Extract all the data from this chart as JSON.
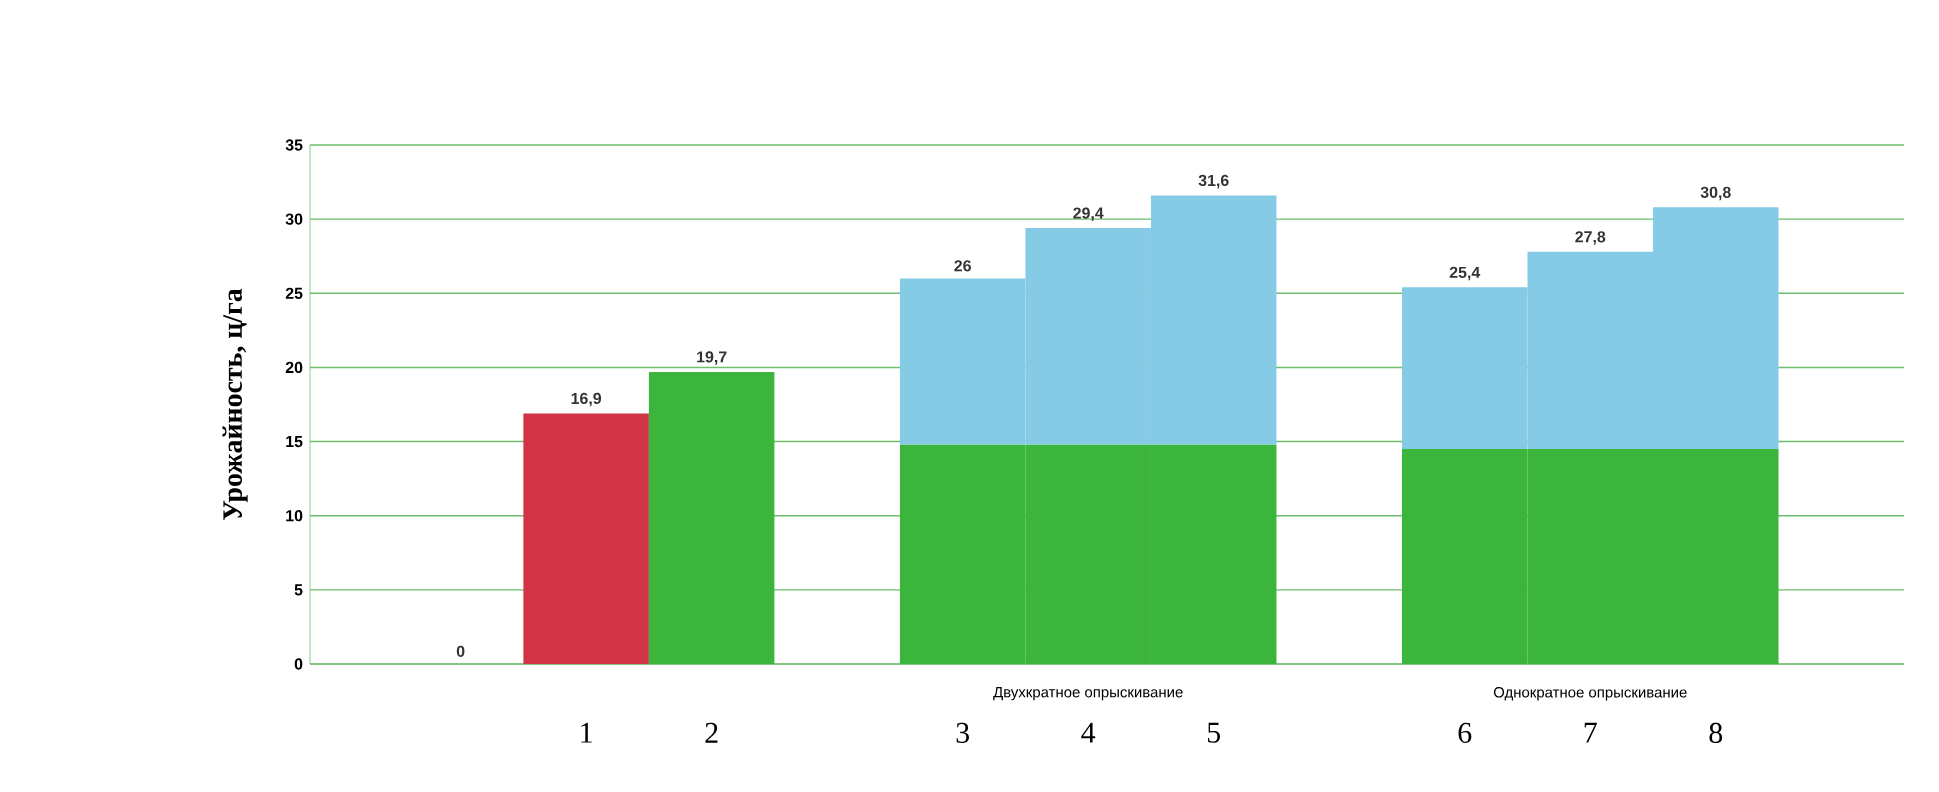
{
  "chart_data": {
    "type": "bar",
    "stacked": true,
    "ylabel": "Урожайность, ц/га",
    "categories": [
      null,
      "1",
      "2",
      null,
      "3",
      "4",
      "5",
      null,
      "6",
      "7",
      "8"
    ],
    "series": [
      {
        "colors": [
          "#3cb53c",
          "#d13545",
          "#3cb53c",
          "#3cb53c",
          "#3cb53c",
          "#3cb53c",
          "#3cb53c",
          "#3cb53c",
          "#3cb53c",
          "#3cb53c",
          "#3cb53c"
        ],
        "values": [
          0,
          16.9,
          19.7,
          null,
          14.8,
          14.8,
          14.8,
          null,
          14.5,
          14.5,
          14.5
        ]
      },
      {
        "color": "#86cbe6",
        "values": [
          null,
          null,
          null,
          null,
          11.2,
          14.6,
          16.8,
          null,
          10.9,
          13.3,
          16.3
        ]
      }
    ],
    "totals": [
      "0",
      "16,9",
      "19,7",
      null,
      "26",
      "29,4",
      "31,6",
      null,
      "25,4",
      "27,8",
      "30,8"
    ],
    "annotations": [
      "Двухкратное опрыскивание",
      "Однократное опрыскивание"
    ],
    "ylim": [
      0,
      35
    ],
    "yticks": [
      0,
      5,
      10,
      15,
      20,
      25,
      30,
      35
    ],
    "grid": "y"
  }
}
